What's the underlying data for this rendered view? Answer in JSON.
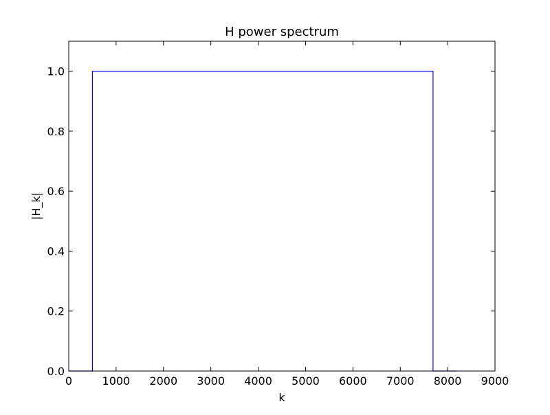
{
  "chart_data": {
    "type": "line",
    "title": "H power spectrum",
    "xlabel": "k",
    "ylabel": "|H_k|",
    "xlim": [
      0,
      9000
    ],
    "ylim": [
      0.0,
      1.1
    ],
    "xticks": [
      0,
      1000,
      2000,
      3000,
      4000,
      5000,
      6000,
      7000,
      8000,
      9000
    ],
    "xtick_labels": [
      "0",
      "1000",
      "2000",
      "3000",
      "4000",
      "5000",
      "6000",
      "7000",
      "8000",
      "9000"
    ],
    "yticks": [
      0.0,
      0.2,
      0.4,
      0.6,
      0.8,
      1.0
    ],
    "ytick_labels": [
      "0.0",
      "0.2",
      "0.4",
      "0.6",
      "0.8",
      "1.0"
    ],
    "grid": false,
    "series": [
      {
        "color": "#0000ff",
        "x": [
          0,
          500,
          500,
          7692,
          7692,
          8192
        ],
        "y": [
          0.0,
          0.0,
          1.0,
          1.0,
          0.0,
          0.0
        ]
      }
    ]
  }
}
